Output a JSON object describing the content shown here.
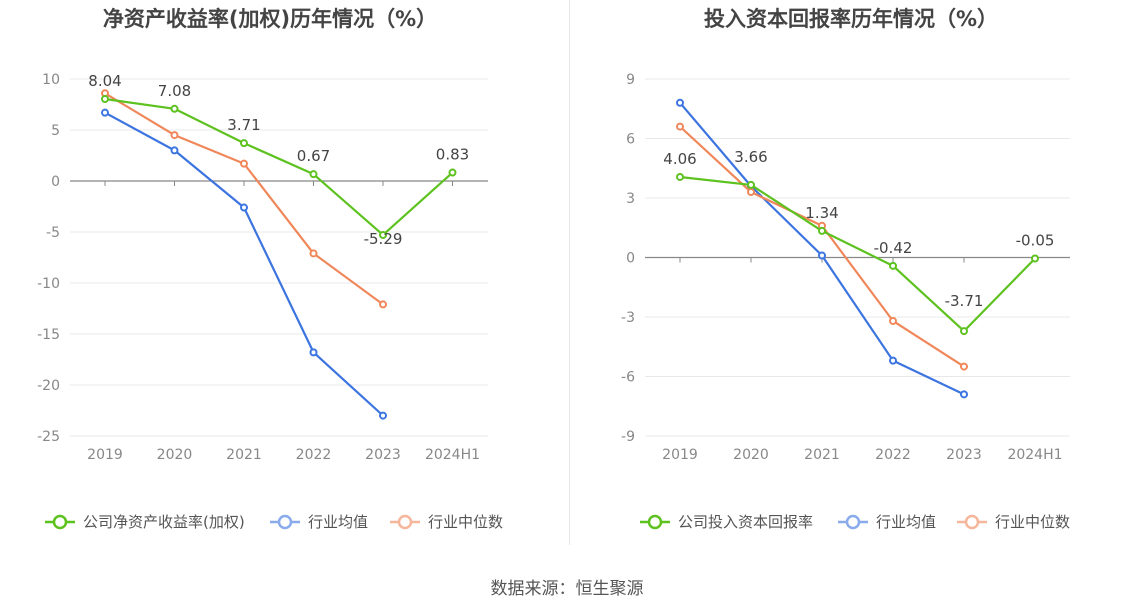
{
  "source_label": "数据来源：恒生聚源",
  "colors": {
    "company": "#5dc21f",
    "avg": "#3c74e0",
    "median": "#f0875a",
    "grid": "#e8e8e8",
    "axis": "#888888",
    "tick_text": "#888888",
    "title": "#444444"
  },
  "chart_data": [
    {
      "type": "line",
      "title": "净资产收益率(加权)历年情况（%）",
      "categories": [
        "2019",
        "2020",
        "2021",
        "2022",
        "2023",
        "2024H1"
      ],
      "yticks": [
        10,
        5,
        0,
        -5,
        -10,
        -15,
        -20,
        -25
      ],
      "ylim": [
        -25,
        10
      ],
      "grid": true,
      "legend_position": "bottom",
      "series": [
        {
          "name": "公司净资产收益率(加权)",
          "key": "company",
          "values": [
            8.04,
            7.08,
            3.71,
            0.67,
            -5.29,
            0.83
          ],
          "labels": [
            "8.04",
            "7.08",
            "3.71",
            "0.67",
            "-5.29",
            "0.83"
          ]
        },
        {
          "name": "行业均值",
          "key": "avg",
          "values": [
            6.7,
            3.0,
            -2.6,
            -16.8,
            -23.0,
            null
          ]
        },
        {
          "name": "行业中位数",
          "key": "median",
          "values": [
            8.6,
            4.5,
            1.7,
            -7.1,
            -12.1,
            null
          ]
        }
      ]
    },
    {
      "type": "line",
      "title": "投入资本回报率历年情况（%）",
      "categories": [
        "2019",
        "2020",
        "2021",
        "2022",
        "2023",
        "2024H1"
      ],
      "yticks": [
        9,
        6,
        3,
        0,
        -3,
        -6,
        -9
      ],
      "ylim": [
        -9,
        9
      ],
      "grid": true,
      "legend_position": "bottom",
      "series": [
        {
          "name": "公司投入资本回报率",
          "key": "company",
          "values": [
            4.06,
            3.66,
            1.34,
            -0.42,
            -3.71,
            -0.05
          ],
          "labels": [
            "4.06",
            "3.66",
            "1.34",
            "-0.42",
            "-3.71",
            "-0.05"
          ]
        },
        {
          "name": "行业均值",
          "key": "avg",
          "values": [
            7.8,
            3.6,
            0.1,
            -5.2,
            -6.9,
            null
          ]
        },
        {
          "name": "行业中位数",
          "key": "median",
          "values": [
            6.6,
            3.3,
            1.6,
            -3.2,
            -5.5,
            null
          ]
        }
      ]
    }
  ]
}
